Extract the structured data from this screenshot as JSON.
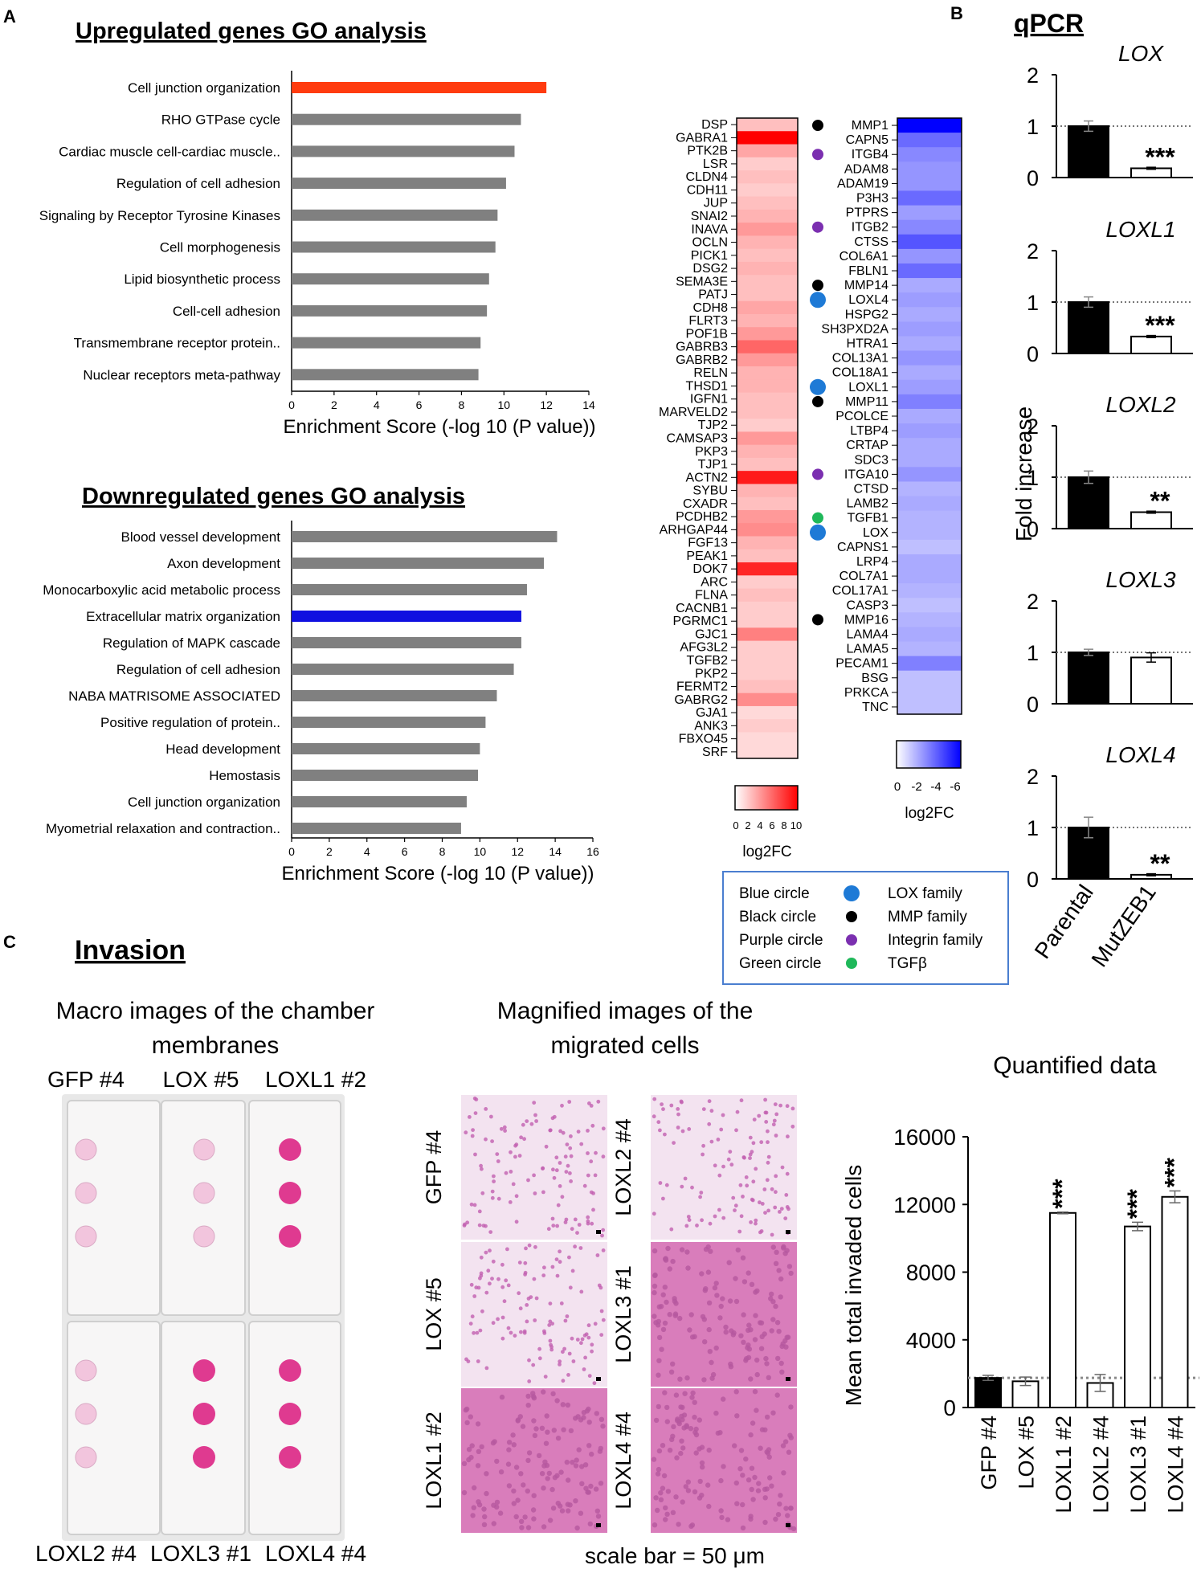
{
  "panel_letters": {
    "a": "A",
    "b": "B",
    "c": "C"
  },
  "up_go": {
    "title": "Upregulated genes GO analysis",
    "xlabel": "Enrichment Score (-log 10 (P value))",
    "ticks": [
      "0",
      "2",
      "4",
      "6",
      "8",
      "10",
      "12",
      "14"
    ],
    "xmax": 14,
    "highlight_color": "#ff3b0f",
    "bar_color": "#808080",
    "categories": [
      "Cell junction organization",
      "RHO GTPase cycle",
      "Cardiac muscle cell-cardiac muscle..",
      "Regulation of cell adhesion",
      "Signaling by Receptor Tyrosine Kinases",
      "Cell morphogenesis",
      "Lipid biosynthetic process",
      "Cell-cell adhesion",
      "Transmembrane receptor protein..",
      "Nuclear receptors meta-pathway"
    ],
    "values": [
      12.0,
      10.8,
      10.5,
      10.1,
      9.7,
      9.6,
      9.3,
      9.2,
      8.9,
      8.8
    ],
    "highlight_index": 0
  },
  "down_go": {
    "title": "Downregulated genes GO analysis",
    "xlabel": "Enrichment Score (-log 10 (P value))",
    "ticks": [
      "0",
      "2",
      "4",
      "6",
      "8",
      "10",
      "12",
      "14",
      "16"
    ],
    "xmax": 16,
    "highlight_color": "#1010e0",
    "bar_color": "#808080",
    "categories": [
      "Blood vessel development",
      "Axon development",
      "Monocarboxylic acid metabolic process",
      "Extracellular matrix organization",
      "Regulation of MAPK cascade",
      "Regulation of cell adhesion",
      "NABA MATRISOME ASSOCIATED",
      "Positive regulation of protein..",
      "Head development",
      "Hemostasis",
      "Cell junction organization",
      "Myometrial relaxation and contraction.."
    ],
    "values": [
      14.1,
      13.4,
      12.5,
      12.2,
      12.2,
      11.8,
      10.9,
      10.3,
      10.0,
      9.9,
      9.3,
      9.0
    ],
    "highlight_index": 3
  },
  "heatmap_up": {
    "genes": [
      "DSP",
      "GABRA1",
      "PTK2B",
      "LSR",
      "CLDN4",
      "CDH11",
      "JUP",
      "SNAI2",
      "INAVA",
      "OCLN",
      "PICK1",
      "DSG2",
      "SEMA3E",
      "PATJ",
      "CDH8",
      "FLRT3",
      "POF1B",
      "GABRB3",
      "GABRB2",
      "RELN",
      "THSD1",
      "IGFN1",
      "MARVELD2",
      "TJP2",
      "CAMSAP3",
      "PKP3",
      "TJP1",
      "ACTN2",
      "SYBU",
      "CXADR",
      "PCDHB2",
      "ARHGAP44",
      "FGF13",
      "PEAK1",
      "DOK7",
      "ARC",
      "FLNA",
      "CACNB1",
      "PGRMC1",
      "GJC1",
      "AFG3L2",
      "TGFB2",
      "PKP2",
      "FERMT2",
      "GABRG2",
      "GJA1",
      "ANK3",
      "FBXO45",
      "SRF"
    ],
    "log2fc": [
      2.5,
      10,
      3.5,
      2,
      2.5,
      2,
      2.5,
      3,
      4,
      3,
      2.5,
      3,
      2.5,
      2.5,
      3.5,
      3,
      4,
      6,
      4,
      3,
      3,
      2.5,
      2.5,
      2,
      4,
      3,
      2.5,
      9,
      3,
      2.5,
      4,
      4.5,
      3,
      2.5,
      8.5,
      2,
      2.5,
      2,
      2,
      5,
      2,
      2,
      2,
      2.5,
      4.5,
      1.5,
      2,
      1.5,
      1.5
    ],
    "legend_ticks": [
      "0",
      "2",
      "4",
      "6",
      "8",
      "10"
    ],
    "legend_label": "log2FC",
    "color": "#ff0000"
  },
  "heatmap_down": {
    "genes": [
      "MMP1",
      "CAPN5",
      "ITGB4",
      "ADAM8",
      "ADAM19",
      "P3H3",
      "PTPRS",
      "ITGB2",
      "CTSS",
      "COL6A1",
      "FBLN1",
      "MMP14",
      "LOXL4",
      "HSPG2",
      "SH3PXD2A",
      "HTRA1",
      "COL13A1",
      "COL18A1",
      "LOXL1",
      "MMP11",
      "PCOLCE",
      "LTBP4",
      "CRTAP",
      "SDC3",
      "ITGA10",
      "CTSD",
      "LAMB2",
      "TGFB1",
      "LOX",
      "CAPNS1",
      "LRP4",
      "COL7A1",
      "COL17A1",
      "CASP3",
      "MMP16",
      "LAMA4",
      "LAMA5",
      "PECAM1",
      "BSG",
      "PRKCA",
      "TNC"
    ],
    "log2fc": [
      -6,
      -3.5,
      -2.8,
      -2.5,
      -2.5,
      -3.5,
      -2.3,
      -2.8,
      -4,
      -2.5,
      -3.5,
      -2,
      -2.3,
      -2,
      -2.3,
      -2,
      -2.5,
      -2,
      -2.3,
      -3,
      -2,
      -2.3,
      -2,
      -2,
      -2.5,
      -1.8,
      -2,
      -1.8,
      -1.8,
      -1.5,
      -2,
      -2,
      -1.8,
      -1.5,
      -1.8,
      -2,
      -1.8,
      -3,
      -1.5,
      -1.5,
      -1.5
    ],
    "markers": [
      [
        "MMP1",
        "black"
      ],
      [
        "ITGB4",
        "purple"
      ],
      [
        "ITGB2",
        "purple"
      ],
      [
        "MMP14",
        "black"
      ],
      [
        "LOXL4",
        "blue"
      ],
      [
        "LOXL1",
        "blue"
      ],
      [
        "MMP11",
        "black"
      ],
      [
        "ITGA10",
        "purple"
      ],
      [
        "TGFB1",
        "green"
      ],
      [
        "LOX",
        "blue"
      ],
      [
        "MMP16",
        "black"
      ]
    ],
    "legend_ticks": [
      "0",
      "-2",
      "-4",
      "-6"
    ],
    "legend_label": "log2FC",
    "color": "#0000ff"
  },
  "circle_legend": {
    "items": [
      {
        "circle": "Blue circle",
        "family": "LOX family",
        "color": "#1e7ad6"
      },
      {
        "circle": "Black circle",
        "family": "MMP family",
        "color": "#000000"
      },
      {
        "circle": "Purple circle",
        "family": "Integrin family",
        "color": "#7b2fb0"
      },
      {
        "circle": "Green circle",
        "family": "TGFβ",
        "color": "#1fb85a"
      }
    ]
  },
  "qpcr": {
    "title": "qPCR",
    "ylabel": "Fold increase",
    "groups": [
      "Parental",
      "MutZEB1"
    ],
    "yticks": [
      "0",
      "1",
      "2"
    ],
    "panels": [
      {
        "gene": "LOX",
        "values": [
          1.0,
          0.18
        ],
        "errors": [
          0.1,
          0.02
        ],
        "sig": "***"
      },
      {
        "gene": "LOXL1",
        "values": [
          1.0,
          0.33
        ],
        "errors": [
          0.1,
          0.02
        ],
        "sig": "***"
      },
      {
        "gene": "LOXL2",
        "values": [
          1.0,
          0.32
        ],
        "errors": [
          0.12,
          0.02
        ],
        "sig": "**"
      },
      {
        "gene": "LOXL3",
        "values": [
          1.0,
          0.9
        ],
        "errors": [
          0.06,
          0.09
        ],
        "sig": ""
      },
      {
        "gene": "LOXL4",
        "values": [
          1.0,
          0.08
        ],
        "errors": [
          0.2,
          0.02
        ],
        "sig": "**"
      }
    ]
  },
  "invasion": {
    "title": "Invasion",
    "macro_title": [
      "Macro images of the chamber",
      "membranes"
    ],
    "macro_top_labels": [
      "GFP #4",
      "LOX #5",
      "LOXL1 #2"
    ],
    "macro_bottom_labels": [
      "LOXL2 #4",
      "LOXL3 #1",
      "LOXL4 #4"
    ],
    "macro_top_intensity": [
      "light",
      "light",
      "strong"
    ],
    "macro_bottom_intensity": [
      "light",
      "strong",
      "strong"
    ],
    "magnified_title": [
      "Magnified images of the",
      "migrated cells"
    ],
    "magnified_labels": [
      "GFP #4",
      "LOXL2 #4",
      "LOX #5",
      "LOXL3 #1",
      "LOXL1 #2",
      "LOXL4 #4"
    ],
    "magnified_density": [
      "sparse",
      "sparse",
      "sparse",
      "dense",
      "dense",
      "dense"
    ],
    "scale_bar": "scale bar = 50 μm"
  },
  "chart_data": [
    {
      "type": "bar",
      "title": "Upregulated genes GO analysis",
      "categories": [
        "Cell junction organization",
        "RHO GTPase cycle",
        "Cardiac muscle cell-cardiac muscle..",
        "Regulation of cell adhesion",
        "Signaling by Receptor Tyrosine Kinases",
        "Cell morphogenesis",
        "Lipid biosynthetic process",
        "Cell-cell adhesion",
        "Transmembrane receptor protein..",
        "Nuclear receptors meta-pathway"
      ],
      "values": [
        12.0,
        10.8,
        10.5,
        10.1,
        9.7,
        9.6,
        9.3,
        9.2,
        8.9,
        8.8
      ],
      "xlabel": "Enrichment Score (-log 10 (P value))",
      "xlim": [
        0,
        14
      ]
    },
    {
      "type": "bar",
      "title": "Downregulated genes GO analysis",
      "categories": [
        "Blood vessel development",
        "Axon development",
        "Monocarboxylic acid metabolic process",
        "Extracellular matrix organization",
        "Regulation of MAPK cascade",
        "Regulation of cell adhesion",
        "NABA MATRISOME ASSOCIATED",
        "Positive regulation of protein..",
        "Head development",
        "Hemostasis",
        "Cell junction organization",
        "Myometrial relaxation and contraction.."
      ],
      "values": [
        14.1,
        13.4,
        12.5,
        12.2,
        12.2,
        11.8,
        10.9,
        10.3,
        10.0,
        9.9,
        9.3,
        9.0
      ],
      "xlabel": "Enrichment Score (-log 10 (P value))",
      "xlim": [
        0,
        16
      ]
    },
    {
      "type": "bar",
      "title": "Quantified data",
      "categories": [
        "GFP #4",
        "LOX #5",
        "LOXL1 #2",
        "LOXL2 #4",
        "LOXL3 #1",
        "LOXL4 #4"
      ],
      "values": [
        1750,
        1550,
        11500,
        1450,
        10700,
        12450
      ],
      "errors": [
        150,
        250,
        50,
        500,
        250,
        350
      ],
      "significance": [
        "",
        "",
        "***",
        "",
        "***",
        "***"
      ],
      "ylabel": "Mean total invaded cells",
      "yticks": [
        "0",
        "4000",
        "8000",
        "12000",
        "16000"
      ],
      "ylim": [
        0,
        16000
      ],
      "reference_line": 1750
    }
  ]
}
